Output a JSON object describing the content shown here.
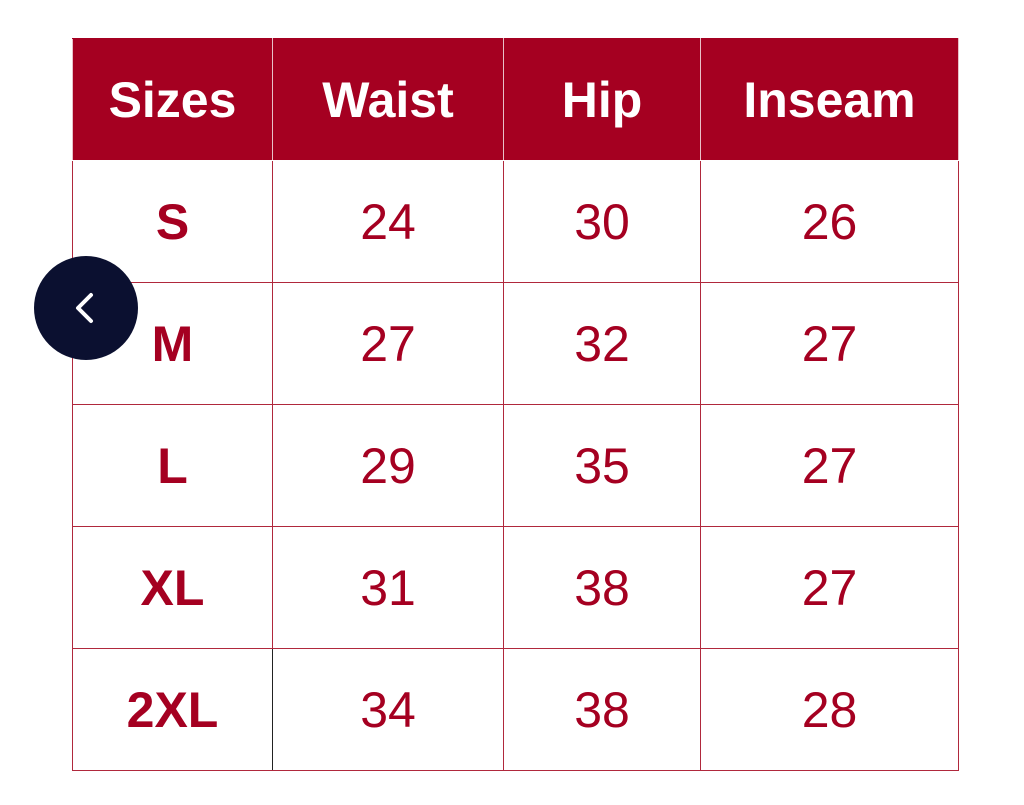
{
  "table": {
    "headers": [
      "Sizes",
      "Waist",
      "Hip",
      "Inseam"
    ],
    "rows": [
      [
        "S",
        "24",
        "30",
        "26"
      ],
      [
        "M",
        "27",
        "32",
        "27"
      ],
      [
        "L",
        "29",
        "35",
        "27"
      ],
      [
        "XL",
        "31",
        "38",
        "27"
      ],
      [
        "2XL",
        "34",
        "38",
        "28"
      ]
    ]
  },
  "colors": {
    "header_bg": "#a50021",
    "text": "#a50021",
    "back_button": "#0b1030"
  },
  "nav": {
    "back_icon": "chevron-left-icon"
  }
}
